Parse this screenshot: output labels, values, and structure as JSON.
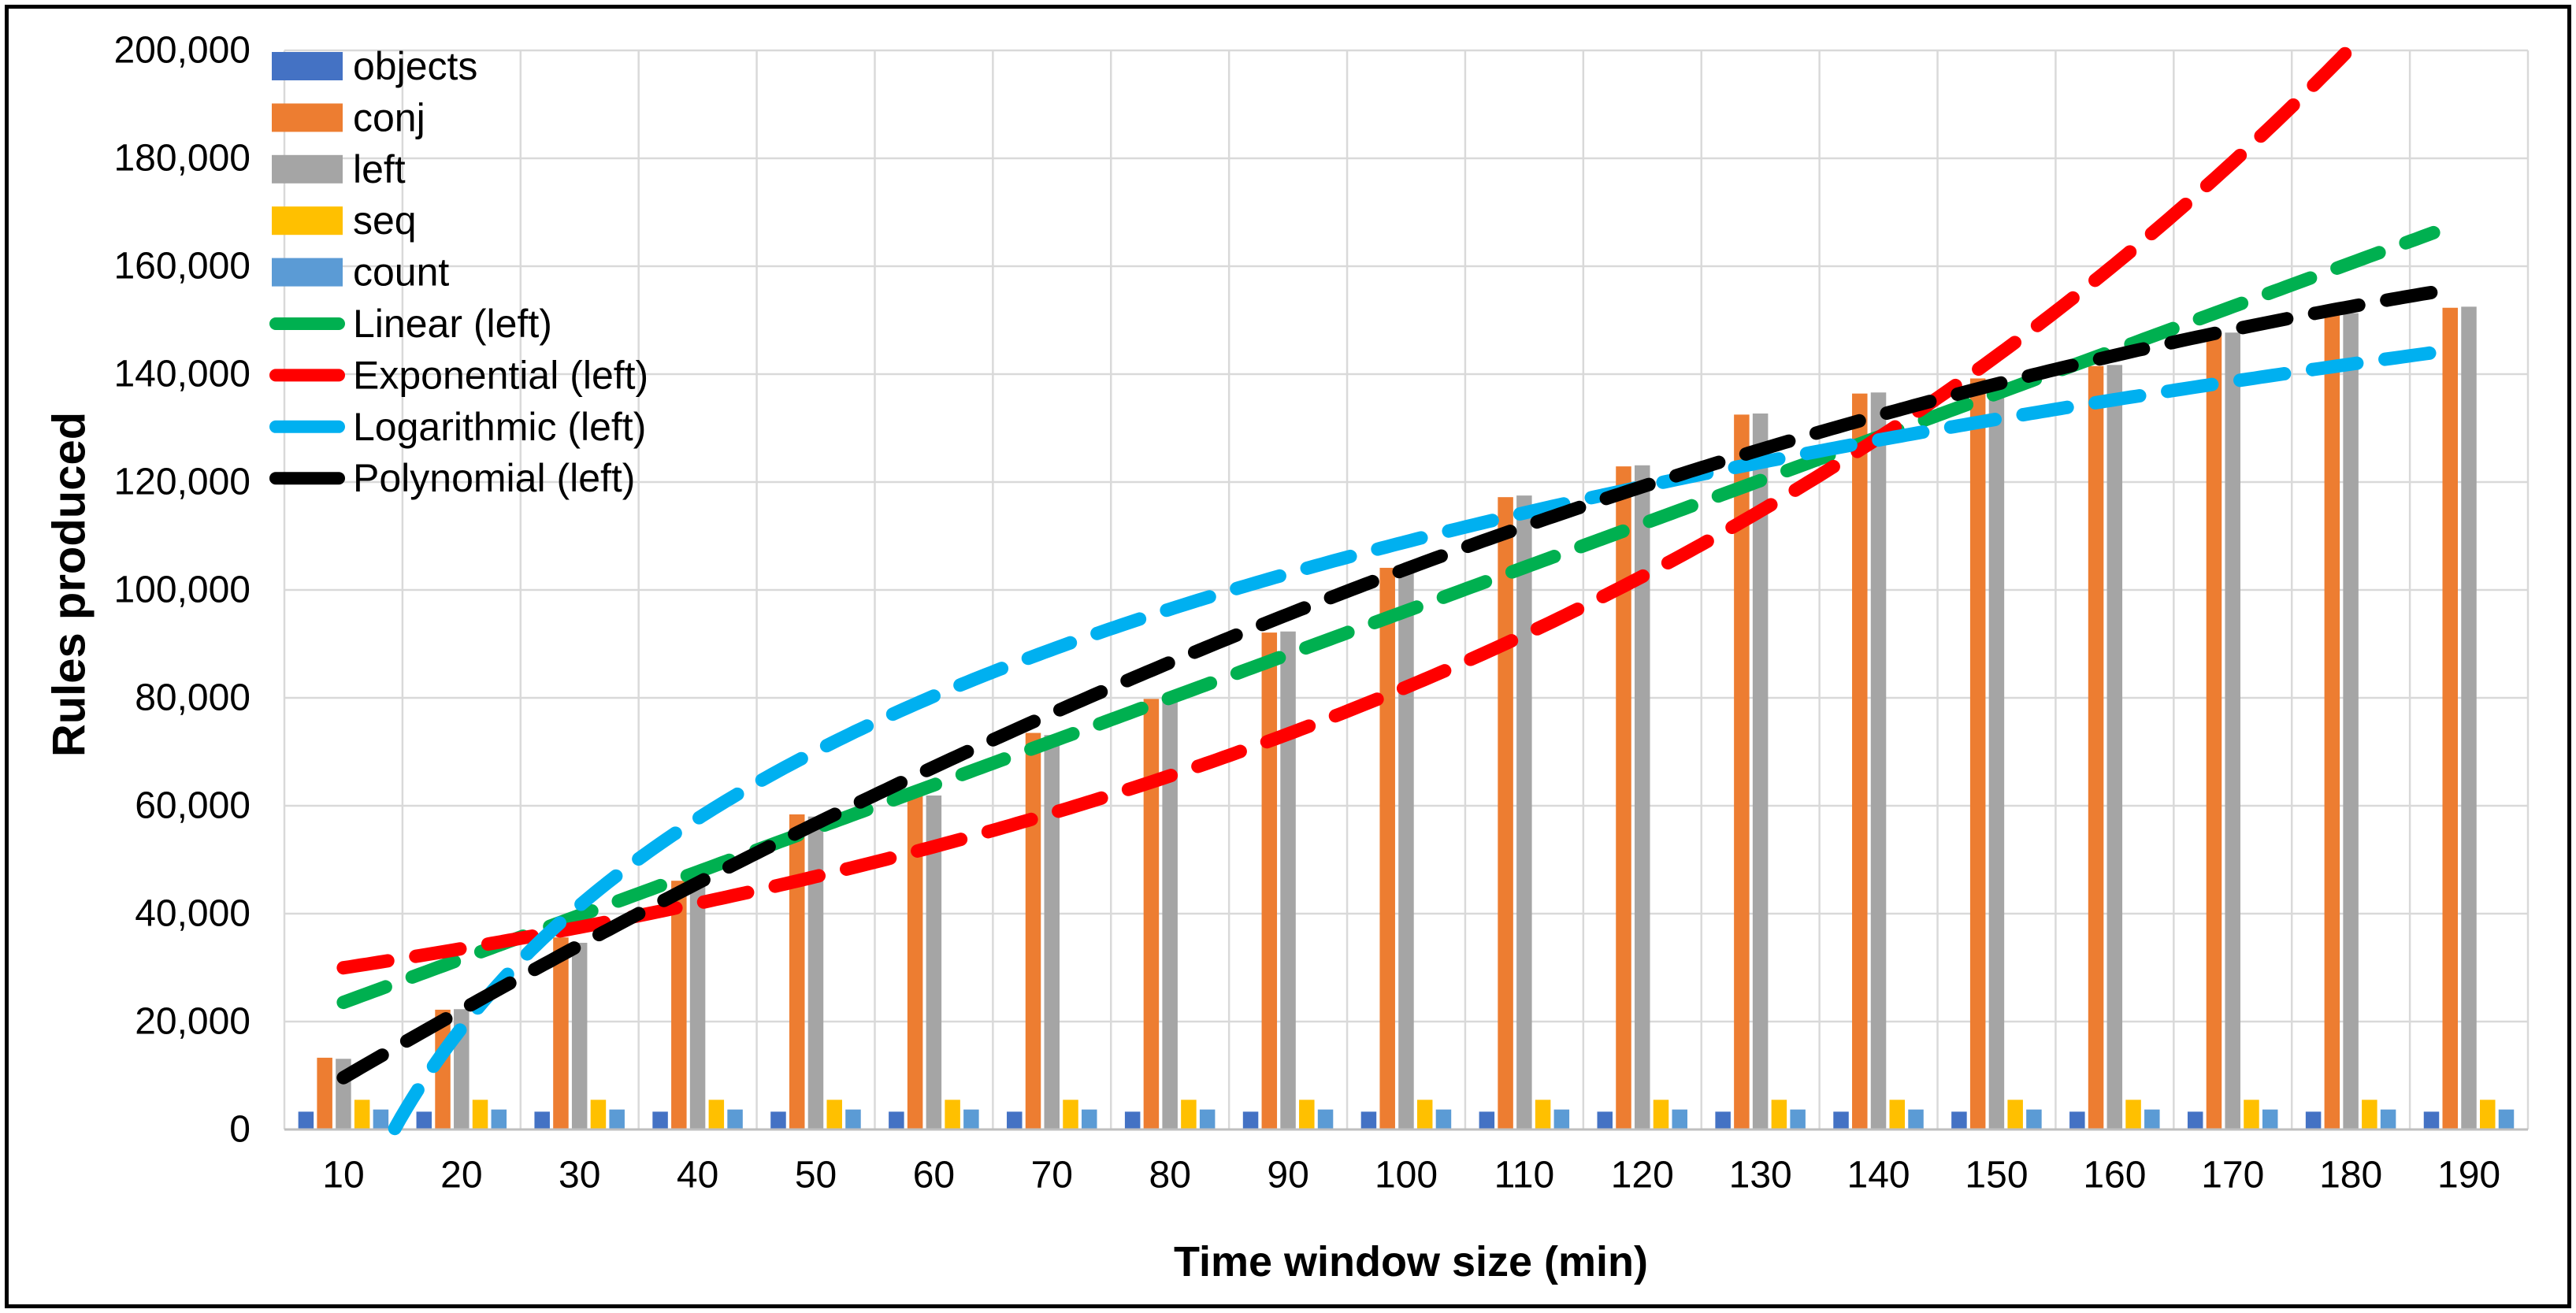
{
  "chart_data": {
    "type": "bar",
    "title": "",
    "xlabel": "Time window size (min)",
    "ylabel": "Rules produced",
    "categories": [
      10,
      20,
      30,
      40,
      50,
      60,
      70,
      80,
      90,
      100,
      110,
      120,
      130,
      140,
      150,
      160,
      170,
      180,
      190
    ],
    "x_tick_labels": [
      "10",
      "20",
      "30",
      "40",
      "50",
      "60",
      "70",
      "80",
      "90",
      "100",
      "110",
      "120",
      "130",
      "140",
      "150",
      "160",
      "170",
      "180",
      "190"
    ],
    "series": [
      {
        "name": "objects",
        "color": "#4472C4",
        "values": [
          3300,
          3300,
          3300,
          3300,
          3300,
          3300,
          3300,
          3300,
          3300,
          3300,
          3300,
          3300,
          3300,
          3300,
          3300,
          3300,
          3300,
          3300,
          3300
        ]
      },
      {
        "name": "conj",
        "color": "#ED7D31",
        "values": [
          13300,
          22200,
          35600,
          46100,
          58400,
          61900,
          73500,
          79800,
          92100,
          104100,
          117200,
          122900,
          132500,
          136400,
          139200,
          141500,
          147600,
          151200,
          152300
        ]
      },
      {
        "name": "left",
        "color": "#A5A5A5",
        "values": [
          13100,
          22300,
          34600,
          46300,
          58000,
          61900,
          73100,
          80000,
          92300,
          104300,
          117500,
          123100,
          132700,
          136600,
          139000,
          141700,
          147700,
          151300,
          152500
        ]
      },
      {
        "name": "seq",
        "color": "#FFC000",
        "values": [
          5500,
          5500,
          5500,
          5500,
          5500,
          5500,
          5500,
          5500,
          5500,
          5500,
          5500,
          5500,
          5500,
          5500,
          5500,
          5500,
          5500,
          5500,
          5500
        ]
      },
      {
        "name": "count",
        "color": "#5B9BD5",
        "values": [
          3700,
          3700,
          3700,
          3700,
          3700,
          3700,
          3700,
          3700,
          3700,
          3700,
          3700,
          3700,
          3700,
          3700,
          3700,
          3700,
          3700,
          3700,
          3700
        ]
      }
    ],
    "trendlines": [
      {
        "name": "Linear (left)",
        "color": "#00B050",
        "type": "linear",
        "params": {
          "slope": 806,
          "intercept": 15500
        },
        "x_start": 10,
        "x_end": 187,
        "values_at_categories": [
          23600,
          31600,
          39700,
          47700,
          55800,
          63900,
          71900,
          80000,
          88000,
          96100,
          104200,
          112200,
          120300,
          128300,
          136400,
          144500,
          152500,
          160600,
          166200
        ]
      },
      {
        "name": "Exponential (left)",
        "color": "#FF0000",
        "type": "exponential",
        "params": {
          "a": 26800,
          "k": 0.01118
        },
        "x_start": 10,
        "x_end": 179.8,
        "values_at_categories": [
          30000,
          33500,
          37500,
          41900,
          46900,
          52400,
          58600,
          65500,
          73300,
          82000,
          91700,
          102500,
          114600,
          128200,
          143300,
          160300,
          179200,
          200000,
          null
        ]
      },
      {
        "name": "Logarithmic (left)",
        "color": "#00B0F0",
        "type": "logarithmic",
        "params": {
          "a": 56010,
          "b": -149000
        },
        "x_start": 14.35,
        "x_end": 188,
        "values_at_categories": [
          null,
          18800,
          41500,
          57600,
          70100,
          80300,
          89000,
          96400,
          103000,
          108900,
          114300,
          119200,
          123600,
          127800,
          131700,
          135300,
          138700,
          141900,
          144900
        ]
      },
      {
        "name": "Polynomial (left)",
        "color": "#000000",
        "type": "quadratic",
        "params": {
          "c0": -3463,
          "c1": 1332.2,
          "c2": -2.587
        },
        "x_start": 10,
        "x_end": 188.5,
        "values_at_categories": [
          9600,
          22200,
          34200,
          45700,
          56700,
          67200,
          77100,
          86500,
          95500,
          103900,
          111700,
          119100,
          125900,
          132200,
          138000,
          143300,
          148100,
          152300,
          155300
        ]
      }
    ],
    "y_axis": {
      "min": 0,
      "max": 200000,
      "step": 20000,
      "tick_labels": [
        "0",
        "20,000",
        "40,000",
        "60,000",
        "80,000",
        "100,000",
        "120,000",
        "140,000",
        "160,000",
        "180,000",
        "200,000"
      ]
    },
    "legend": {
      "position": "top-left-inside",
      "entries": [
        {
          "label": "objects",
          "kind": "bar",
          "color": "#4472C4"
        },
        {
          "label": "conj",
          "kind": "bar",
          "color": "#ED7D31"
        },
        {
          "label": "left",
          "kind": "bar",
          "color": "#A5A5A5"
        },
        {
          "label": "seq",
          "kind": "bar",
          "color": "#FFC000"
        },
        {
          "label": "count",
          "kind": "bar",
          "color": "#5B9BD5"
        },
        {
          "label": "Linear (left)",
          "kind": "line",
          "color": "#00B050"
        },
        {
          "label": "Exponential (left)",
          "kind": "line",
          "color": "#FF0000"
        },
        {
          "label": "Logarithmic (left)",
          "kind": "line",
          "color": "#00B0F0"
        },
        {
          "label": "Polynomial (left)",
          "kind": "line",
          "color": "#000000"
        }
      ]
    },
    "grid": {
      "horizontal": true,
      "vertical": true
    },
    "colors": {
      "gridline": "#D9D9D9",
      "axis_line": "#BFBFBF",
      "text": "#000000",
      "background": "#FFFFFF"
    }
  }
}
